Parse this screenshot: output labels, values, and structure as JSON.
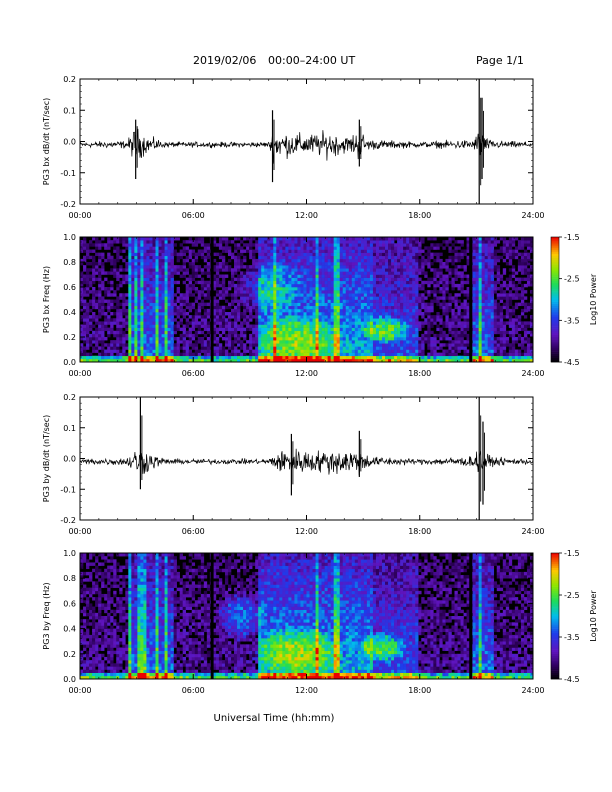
{
  "header": {
    "date": "2019/02/06",
    "range": "00:00–24:00 UT",
    "page": "Page 1/1"
  },
  "xlabel": "Universal Time (hh:mm)",
  "chart_data": [
    {
      "id": "bx_wave",
      "type": "line",
      "ylabel": "PG3 bx dB/dt (nT/sec)",
      "xlim": [
        0,
        24
      ],
      "ylim": [
        -0.2,
        0.2
      ],
      "x_tick_labels": [
        "00:00",
        "06:00",
        "12:00",
        "18:00",
        "24:00"
      ],
      "y_tick_labels": [
        "-0.2",
        "-0.1",
        "0.0",
        "0.1",
        "0.2"
      ],
      "baseline": -0.01,
      "envelope": [
        [
          0,
          0.01
        ],
        [
          2.5,
          0.015
        ],
        [
          2.7,
          0.04
        ],
        [
          2.95,
          0.07
        ],
        [
          3.2,
          0.05
        ],
        [
          3.6,
          0.03
        ],
        [
          4.2,
          0.02
        ],
        [
          4.5,
          0.01
        ],
        [
          10.0,
          0.01
        ],
        [
          10.2,
          0.06
        ],
        [
          10.6,
          0.05
        ],
        [
          12.0,
          0.04
        ],
        [
          13.2,
          0.05
        ],
        [
          14.2,
          0.03
        ],
        [
          14.8,
          0.06
        ],
        [
          15.3,
          0.02
        ],
        [
          18.0,
          0.01
        ],
        [
          20.9,
          0.02
        ],
        [
          21.1,
          0.06
        ],
        [
          21.3,
          0.06
        ],
        [
          21.6,
          0.02
        ],
        [
          22.0,
          0.015
        ],
        [
          24,
          0.01
        ]
      ],
      "spikes": [
        {
          "t": 2.95,
          "max": 0.07,
          "min": -0.12
        },
        {
          "t": 10.2,
          "max": 0.1,
          "min": -0.13
        },
        {
          "t": 14.8,
          "max": 0.07,
          "min": -0.08
        },
        {
          "t": 21.15,
          "max": 0.2,
          "min": -0.2
        },
        {
          "t": 21.3,
          "max": 0.14,
          "min": -0.12
        }
      ]
    },
    {
      "id": "bx_spec",
      "type": "heatmap",
      "ylabel": "PG3 bx Freq (Hz)",
      "xlim": [
        0,
        24
      ],
      "ylim": [
        0,
        1.0
      ],
      "x_tick_labels": [
        "00:00",
        "06:00",
        "12:00",
        "18:00",
        "24:00"
      ],
      "y_tick_labels": [
        "0.0",
        "0.2",
        "0.4",
        "0.6",
        "0.8",
        "1.0"
      ],
      "colorbar": {
        "label": "Log10 Power",
        "range": [
          -4.5,
          -1.5
        ],
        "tick_labels": [
          "-1.5",
          "-2.5",
          "-3.5",
          "-4.5"
        ]
      },
      "gaps": [
        7.0,
        20.7
      ],
      "hot_streaks": [
        2.7,
        3.0,
        3.3,
        4.1,
        4.5,
        10.3,
        12.6,
        13.6,
        21.2
      ],
      "blobs": [
        {
          "t": 16.2,
          "f": 0.26,
          "w": 1.3,
          "h": 0.12,
          "a": 1.0
        },
        {
          "t": 11.5,
          "f": 0.18,
          "w": 2.5,
          "h": 0.2,
          "a": 0.7
        },
        {
          "t": 10.0,
          "f": 0.6,
          "w": 1.8,
          "h": 0.2,
          "a": 0.5
        }
      ]
    },
    {
      "id": "by_wave",
      "type": "line",
      "ylabel": "PG3 by dB/dt (nT/sec)",
      "xlim": [
        0,
        24
      ],
      "ylim": [
        -0.2,
        0.2
      ],
      "x_tick_labels": [
        "00:00",
        "06:00",
        "12:00",
        "18:00",
        "24:00"
      ],
      "y_tick_labels": [
        "-0.2",
        "-0.1",
        "0.0",
        "0.1",
        "0.2"
      ],
      "baseline": -0.01,
      "envelope": [
        [
          0,
          0.01
        ],
        [
          2.5,
          0.015
        ],
        [
          2.8,
          0.05
        ],
        [
          3.2,
          0.06
        ],
        [
          3.6,
          0.04
        ],
        [
          4.2,
          0.02
        ],
        [
          4.6,
          0.01
        ],
        [
          10.0,
          0.01
        ],
        [
          10.4,
          0.04
        ],
        [
          11.5,
          0.05
        ],
        [
          12.5,
          0.04
        ],
        [
          13.5,
          0.05
        ],
        [
          14.8,
          0.05
        ],
        [
          15.4,
          0.02
        ],
        [
          18.0,
          0.01
        ],
        [
          20.9,
          0.02
        ],
        [
          21.1,
          0.06
        ],
        [
          21.3,
          0.06
        ],
        [
          21.7,
          0.02
        ],
        [
          22.0,
          0.015
        ],
        [
          24,
          0.01
        ]
      ],
      "spikes": [
        {
          "t": 3.2,
          "max": 0.2,
          "min": -0.1
        },
        {
          "t": 11.2,
          "max": 0.08,
          "min": -0.12
        },
        {
          "t": 14.8,
          "max": 0.09,
          "min": -0.06
        },
        {
          "t": 21.15,
          "max": 0.2,
          "min": -0.2
        },
        {
          "t": 21.35,
          "max": 0.12,
          "min": -0.15
        }
      ]
    },
    {
      "id": "by_spec",
      "type": "heatmap",
      "ylabel": "PG3 by Freq (Hz)",
      "xlim": [
        0,
        24
      ],
      "ylim": [
        0,
        1.0
      ],
      "x_tick_labels": [
        "00:00",
        "06:00",
        "12:00",
        "18:00",
        "24:00"
      ],
      "y_tick_labels": [
        "0.0",
        "0.2",
        "0.4",
        "0.6",
        "0.8",
        "1.0"
      ],
      "colorbar": {
        "label": "Log10 Power",
        "range": [
          -4.5,
          -1.5
        ],
        "tick_labels": [
          "-1.5",
          "-2.5",
          "-3.5",
          "-4.5"
        ]
      },
      "gaps": [
        7.0,
        20.7
      ],
      "hot_streaks": [
        2.7,
        3.2,
        3.4,
        4.1,
        4.5,
        12.6,
        13.6,
        21.2
      ],
      "blobs": [
        {
          "t": 16.0,
          "f": 0.25,
          "w": 1.3,
          "h": 0.12,
          "a": 1.0
        },
        {
          "t": 11.5,
          "f": 0.22,
          "w": 2.5,
          "h": 0.2,
          "a": 0.8
        },
        {
          "t": 8.5,
          "f": 0.5,
          "w": 1.3,
          "h": 0.2,
          "a": 0.7
        }
      ]
    }
  ]
}
